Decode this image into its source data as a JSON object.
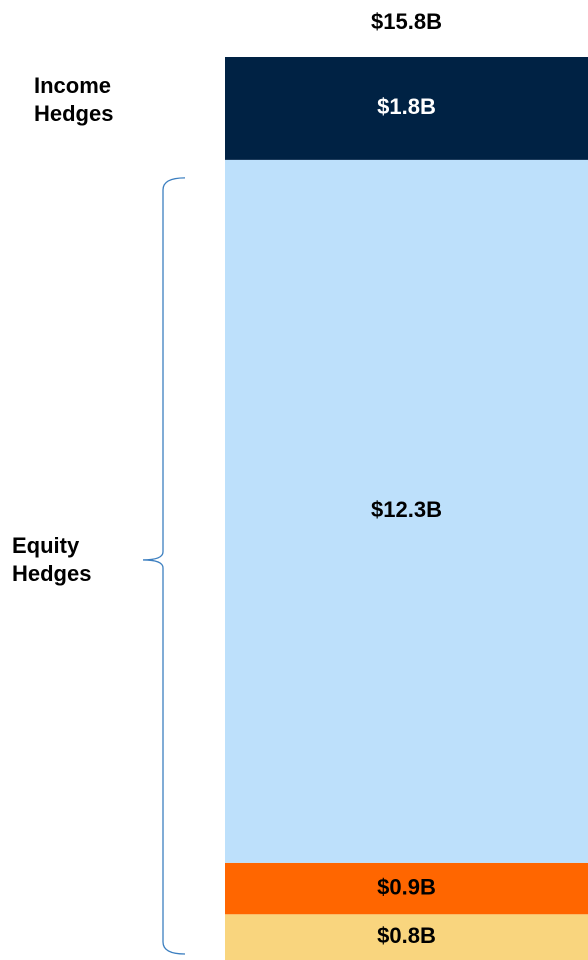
{
  "chart_data": {
    "type": "stacked_bar",
    "values": [
      0.8,
      0.9,
      12.3,
      1.8
    ],
    "value_labels": [
      "$0.8B",
      "$0.9B",
      "$12.3B",
      "$1.8B"
    ],
    "colors": [
      "#f9d57e",
      "#ff6600",
      "#bde0fb",
      "#002244"
    ],
    "label_colors": [
      "#000000",
      "#000000",
      "#000000",
      "#ffffff"
    ],
    "total": 15.8,
    "total_label": "$15.8B",
    "groups": [
      {
        "label": "Income Hedges",
        "segments": [
          3
        ],
        "bracket": false
      },
      {
        "label": "Equity Hedges",
        "segments": [
          0,
          1,
          2
        ],
        "bracket": true
      }
    ]
  }
}
